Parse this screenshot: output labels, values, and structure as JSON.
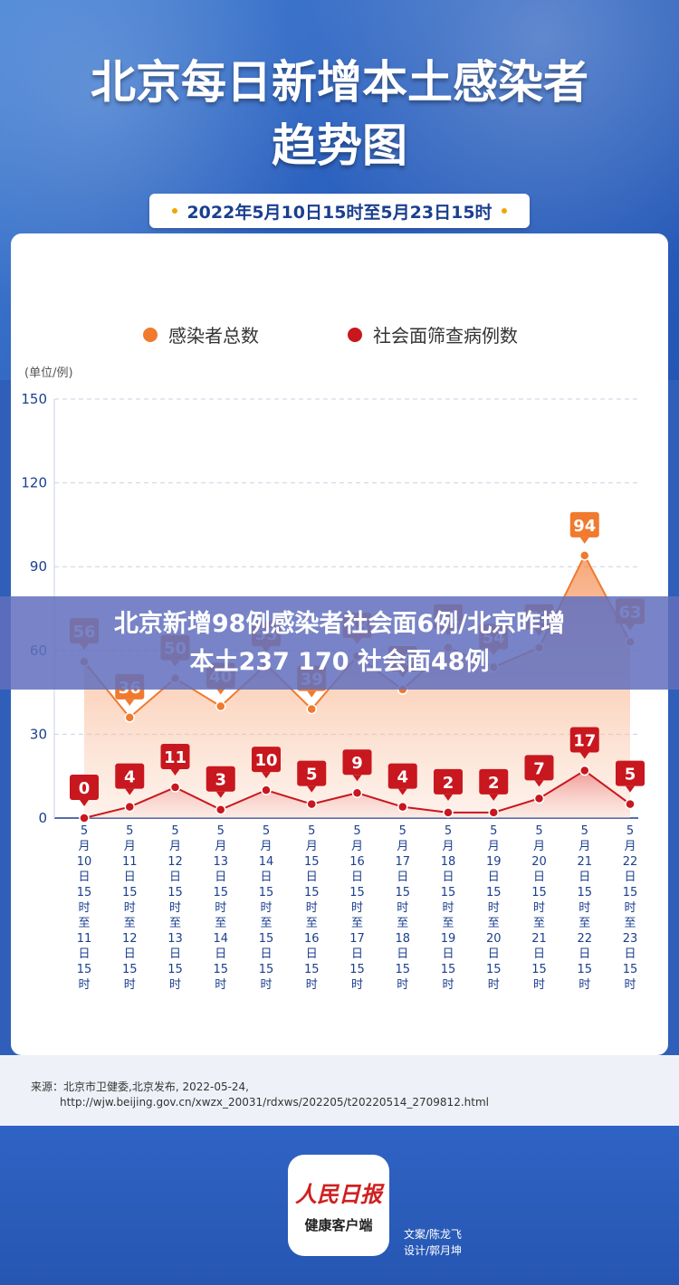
{
  "header": {
    "title_line1": "北京每日新增本土感染者",
    "title_line2": "趋势图",
    "date_range": "2022年5月10日15时至5月23日15时"
  },
  "overlay": {
    "line1": "北京新增98例感染者社会面6例/北京昨增",
    "line2": "本土237 170 社会面48例"
  },
  "chart_data": {
    "type": "area",
    "ylabel": "(单位/例)",
    "ylim": [
      0,
      150
    ],
    "yticks": [
      0,
      30,
      60,
      90,
      120,
      150
    ],
    "categories": [
      "5月10日15时至11日15时",
      "5月11日15时至12日15时",
      "5月12日15时至13日15时",
      "5月13日15时至14日15时",
      "5月14日15时至15日15时",
      "5月15日15时至16日15时",
      "5月16日15时至17日15时",
      "5月17日15时至18日15时",
      "5月18日15时至19日15时",
      "5月19日15时至20日15时",
      "5月20日15时至21日15时",
      "5月21日15时至22日15时",
      "5月22日15时至23日15时"
    ],
    "tick_labels": [
      [
        "5",
        "月",
        "10",
        "日",
        "15",
        "时",
        "至",
        "11",
        "日",
        "15",
        "时"
      ],
      [
        "5",
        "月",
        "11",
        "日",
        "15",
        "时",
        "至",
        "12",
        "日",
        "15",
        "时"
      ],
      [
        "5",
        "月",
        "12",
        "日",
        "15",
        "时",
        "至",
        "13",
        "日",
        "15",
        "时"
      ],
      [
        "5",
        "月",
        "13",
        "日",
        "15",
        "时",
        "至",
        "14",
        "日",
        "15",
        "时"
      ],
      [
        "5",
        "月",
        "14",
        "日",
        "15",
        "时",
        "至",
        "15",
        "日",
        "15",
        "时"
      ],
      [
        "5",
        "月",
        "15",
        "日",
        "15",
        "时",
        "至",
        "16",
        "日",
        "15",
        "时"
      ],
      [
        "5",
        "月",
        "16",
        "日",
        "15",
        "时",
        "至",
        "17",
        "日",
        "15",
        "时"
      ],
      [
        "5",
        "月",
        "17",
        "日",
        "15",
        "时",
        "至",
        "18",
        "日",
        "15",
        "时"
      ],
      [
        "5",
        "月",
        "18",
        "日",
        "15",
        "时",
        "至",
        "19",
        "日",
        "15",
        "时"
      ],
      [
        "5",
        "月",
        "19",
        "日",
        "15",
        "时",
        "至",
        "20",
        "日",
        "15",
        "时"
      ],
      [
        "5",
        "月",
        "20",
        "日",
        "15",
        "时",
        "至",
        "21",
        "日",
        "15",
        "时"
      ],
      [
        "5",
        "月",
        "21",
        "日",
        "15",
        "时",
        "至",
        "22",
        "日",
        "15",
        "时"
      ],
      [
        "5",
        "月",
        "22",
        "日",
        "15",
        "时",
        "至",
        "23",
        "日",
        "15",
        "时"
      ]
    ],
    "series": [
      {
        "name": "感染者总数",
        "color": "#f07a2e",
        "values": [
          56,
          36,
          50,
          40,
          55,
          39,
          58,
          46,
          61,
          54,
          61,
          94,
          63
        ]
      },
      {
        "name": "社会面筛查病例数",
        "color": "#c8171e",
        "values": [
          0,
          4,
          11,
          3,
          10,
          5,
          9,
          4,
          2,
          2,
          7,
          17,
          5
        ]
      }
    ],
    "grid": true,
    "legend": "top"
  },
  "source": {
    "line1": "来源：北京市卫健委,北京发布, 2022-05-24,",
    "line2": "http://wjw.beijing.gov.cn/xwzx_20031/rdxws/202205/t20220514_2709812.html"
  },
  "footer": {
    "logo_main": "人民日报",
    "logo_sub": "健康客户端",
    "credit_text": "文案/陈龙飞",
    "credit_design": "设计/郭月坤"
  }
}
